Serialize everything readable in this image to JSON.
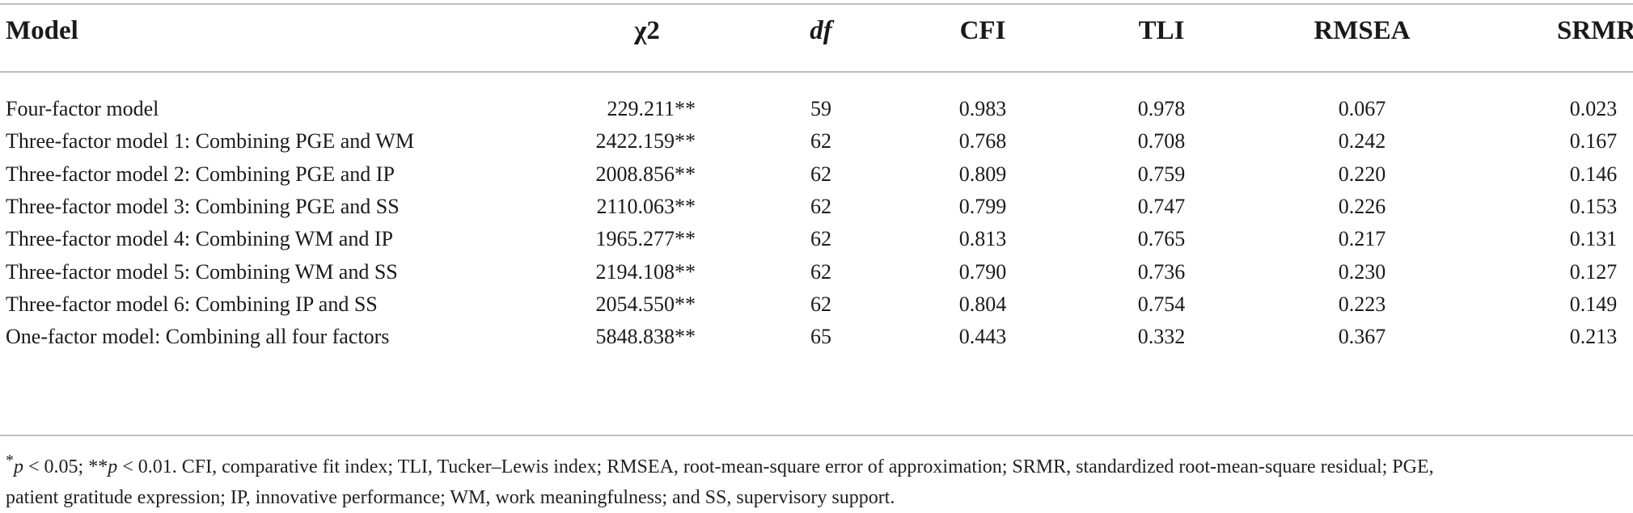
{
  "table": {
    "headers": {
      "model": "Model",
      "chi2": "χ2",
      "df": "df",
      "cfi": "CFI",
      "tli": "TLI",
      "rmsea": "RMSEA",
      "srmr": "SRMR"
    },
    "rows": [
      {
        "model": "Four-factor model",
        "chi2": "229.211**",
        "df": "59",
        "cfi": "0.983",
        "tli": "0.978",
        "rmsea": "0.067",
        "srmr": "0.023"
      },
      {
        "model": "Three-factor model 1: Combining PGE and WM",
        "chi2": "2422.159**",
        "df": "62",
        "cfi": "0.768",
        "tli": "0.708",
        "rmsea": "0.242",
        "srmr": "0.167"
      },
      {
        "model": "Three-factor model 2: Combining PGE and IP",
        "chi2": "2008.856**",
        "df": "62",
        "cfi": "0.809",
        "tli": "0.759",
        "rmsea": "0.220",
        "srmr": "0.146"
      },
      {
        "model": "Three-factor model 3: Combining PGE and SS",
        "chi2": "2110.063**",
        "df": "62",
        "cfi": "0.799",
        "tli": "0.747",
        "rmsea": "0.226",
        "srmr": "0.153"
      },
      {
        "model": "Three-factor model 4: Combining WM and IP",
        "chi2": "1965.277**",
        "df": "62",
        "cfi": "0.813",
        "tli": "0.765",
        "rmsea": "0.217",
        "srmr": "0.131"
      },
      {
        "model": "Three-factor model 5: Combining WM and SS",
        "chi2": "2194.108**",
        "df": "62",
        "cfi": "0.790",
        "tli": "0.736",
        "rmsea": "0.230",
        "srmr": "0.127"
      },
      {
        "model": "Three-factor model 6: Combining IP and SS",
        "chi2": "2054.550**",
        "df": "62",
        "cfi": "0.804",
        "tli": "0.754",
        "rmsea": "0.223",
        "srmr": "0.149"
      },
      {
        "model": "One-factor model: Combining all four factors",
        "chi2": "5848.838**",
        "df": "65",
        "cfi": "0.443",
        "tli": "0.332",
        "rmsea": "0.367",
        "srmr": "0.213"
      }
    ]
  },
  "footnote": {
    "star1": "*",
    "p1": "p",
    "sig1": " < 0.05; **",
    "p2": "p",
    "sig2": " < 0.01. CFI, comparative fit index; TLI, Tucker–Lewis index; RMSEA, root-mean-square error of approximation; SRMR, standardized root-mean-square residual; PGE,",
    "line2": "patient gratitude expression; IP, innovative performance; WM, work meaningfulness; and SS, supervisory support."
  }
}
